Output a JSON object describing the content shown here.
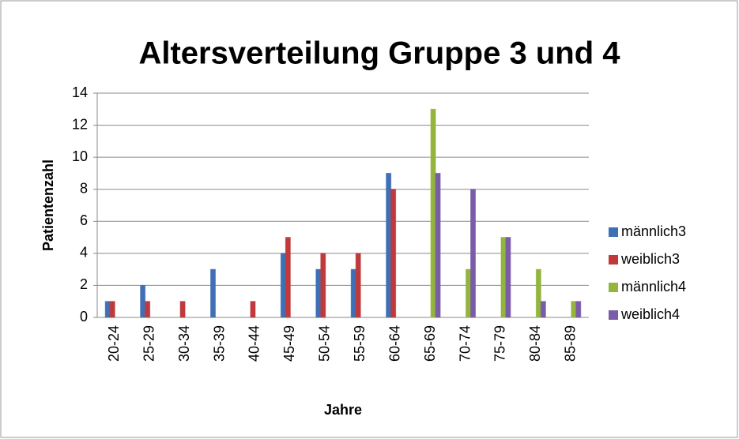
{
  "chart_data": {
    "type": "bar",
    "title": "Altersverteilung Gruppe 3 und 4",
    "x_label": "Jahre",
    "y_label": "Patientenzahl",
    "categories": [
      "20-24",
      "25-29",
      "30-34",
      "35-39",
      "40-44",
      "45-49",
      "50-54",
      "55-59",
      "60-64",
      "65-69",
      "70-74",
      "75-79",
      "80-84",
      "85-89"
    ],
    "series": [
      {
        "name": "männlich3",
        "color": "#3f6fb5",
        "values": [
          1,
          2,
          0,
          3,
          0,
          4,
          3,
          3,
          9,
          0,
          0,
          0,
          0,
          0
        ]
      },
      {
        "name": "weiblich3",
        "color": "#c0393b",
        "values": [
          1,
          1,
          1,
          0,
          1,
          5,
          4,
          4,
          8,
          0,
          0,
          0,
          0,
          0
        ]
      },
      {
        "name": "männlich4",
        "color": "#93b43d",
        "values": [
          0,
          0,
          0,
          0,
          0,
          0,
          0,
          0,
          0,
          13,
          3,
          5,
          3,
          1
        ]
      },
      {
        "name": "weiblich4",
        "color": "#7b5ca8",
        "values": [
          0,
          0,
          0,
          0,
          0,
          0,
          0,
          0,
          0,
          9,
          8,
          5,
          1,
          1
        ]
      }
    ],
    "ylim": [
      0,
      14
    ],
    "yticks": [
      0,
      2,
      4,
      6,
      8,
      10,
      12,
      14
    ],
    "grid": true,
    "legend": "right"
  }
}
